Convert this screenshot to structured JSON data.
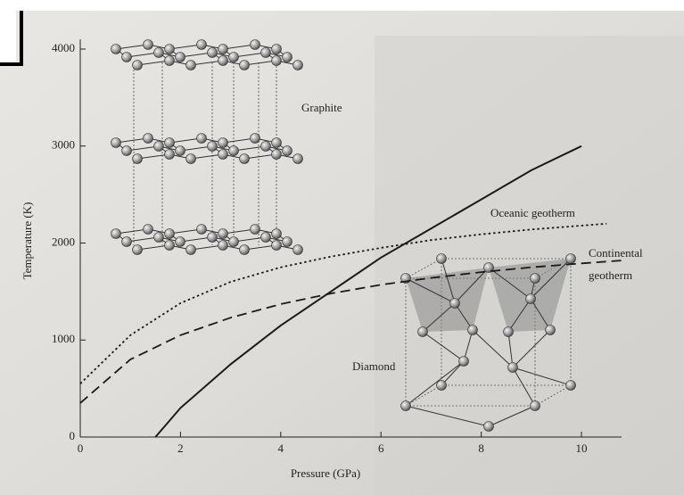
{
  "chart_data": {
    "type": "line",
    "x_label": "Pressure (GPa)",
    "y_label": "Temperature (K)",
    "xlim": [
      0,
      10.8
    ],
    "ylim": [
      0,
      4100
    ],
    "xticks": [
      0,
      2,
      4,
      6,
      8,
      10
    ],
    "yticks": [
      0,
      1000,
      2000,
      3000,
      4000
    ],
    "grid": false,
    "series": [
      {
        "style": "solid",
        "color": "#1a1a1a",
        "x": [
          1.5,
          2,
          3,
          4,
          5,
          6,
          7,
          8,
          9,
          10
        ],
        "values": [
          0,
          300,
          750,
          1150,
          1500,
          1850,
          2150,
          2450,
          2750,
          3000
        ]
      },
      {
        "style": "dotted",
        "color": "#1a1a1a",
        "x": [
          0,
          1,
          2,
          3,
          4,
          5,
          6,
          7,
          8,
          9,
          10.5
        ],
        "values": [
          550,
          1050,
          1380,
          1600,
          1750,
          1860,
          1950,
          2030,
          2090,
          2140,
          2200
        ]
      },
      {
        "style": "dashed",
        "color": "#1a1a1a",
        "x": [
          0,
          1,
          2,
          3,
          4,
          5,
          6,
          7,
          8,
          9,
          10,
          10.8
        ],
        "values": [
          350,
          800,
          1050,
          1230,
          1370,
          1480,
          1570,
          1640,
          1700,
          1750,
          1790,
          1820
        ]
      }
    ],
    "annotations": [
      "Graphite",
      "Diamond",
      "Oceanic geotherm",
      "Continental",
      "geotherm"
    ]
  }
}
